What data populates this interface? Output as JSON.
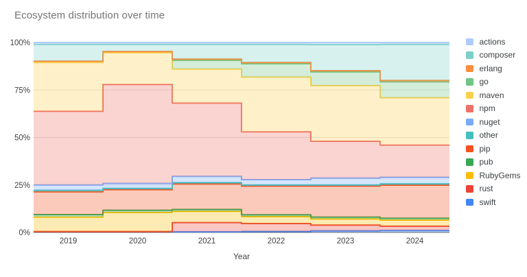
{
  "chart_data": {
    "type": "area",
    "variant": "stacked-step-area",
    "title": "Ecosystem distribution over time",
    "xlabel": "Year",
    "ylabel": "",
    "x_labels": [
      "2019",
      "2020",
      "2021",
      "2022",
      "2023",
      "2024"
    ],
    "y_ticks": [
      "0%",
      "25%",
      "50%",
      "75%",
      "100%"
    ],
    "y_tick_values": [
      0,
      25,
      50,
      75,
      100
    ],
    "ylim": [
      0,
      100
    ],
    "grid": true,
    "legend_position": "right",
    "stack_order_bottom_to_top": [
      "swift",
      "rust",
      "RubyGems",
      "pub",
      "pip",
      "other",
      "nuget",
      "npm",
      "maven",
      "go",
      "erlang",
      "composer",
      "actions"
    ],
    "series": [
      {
        "name": "actions",
        "color": "#aecbfa",
        "values": [
          1.0,
          1.0,
          1.0,
          1.0,
          1.1,
          1.0
        ]
      },
      {
        "name": "composer",
        "color": "#7bd0c9",
        "values": [
          8.8,
          3.7,
          7.7,
          9.5,
          13.7,
          19.0
        ]
      },
      {
        "name": "erlang",
        "color": "#f98e3d",
        "values": [
          0.7,
          0.7,
          0.7,
          0.7,
          0.7,
          0.7
        ]
      },
      {
        "name": "go",
        "color": "#6fc584",
        "values": [
          0,
          0,
          4.6,
          7.0,
          7.2,
          8.4
        ]
      },
      {
        "name": "maven",
        "color": "#fbd04e",
        "values": [
          25.7,
          16.7,
          17.9,
          28.8,
          29.3,
          24.9
        ]
      },
      {
        "name": "npm",
        "color": "#ee7068",
        "values": [
          38.8,
          52.1,
          38.6,
          25.2,
          19.4,
          17.0
        ]
      },
      {
        "name": "nuget",
        "color": "#7baaf7",
        "values": [
          2.8,
          2.6,
          3.3,
          2.8,
          3.6,
          3.4
        ]
      },
      {
        "name": "other",
        "color": "#43c0bb",
        "values": [
          0.8,
          0.7,
          0.6,
          0.6,
          0.6,
          0.7
        ]
      },
      {
        "name": "pip",
        "color": "#f4511e",
        "values": [
          12.0,
          10.8,
          13.5,
          15.1,
          16.3,
          17.4
        ]
      },
      {
        "name": "pub",
        "color": "#34a853",
        "values": [
          1.3,
          1.2,
          1.0,
          1.0,
          1.0,
          1.0
        ]
      },
      {
        "name": "RubyGems",
        "color": "#fbbc04",
        "values": [
          7.6,
          10.0,
          5.9,
          3.6,
          3.2,
          3.2
        ]
      },
      {
        "name": "rust",
        "color": "#ea4335",
        "values": [
          0.5,
          0.5,
          4.9,
          4.2,
          3.1,
          2.3
        ]
      },
      {
        "name": "swift",
        "color": "#4285f4",
        "values": [
          0,
          0,
          0.3,
          0.5,
          0.8,
          1.0
        ]
      }
    ],
    "colors": {
      "grid": "#e0e0e0",
      "baseline": "#616161",
      "axis_text": "#424242",
      "title_text": "#757575",
      "legend_text": "#3c4043"
    }
  }
}
